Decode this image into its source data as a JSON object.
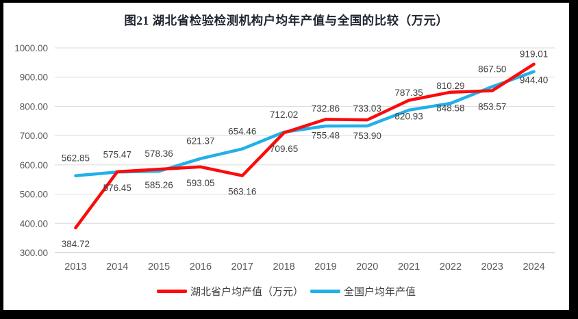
{
  "chart_data": {
    "type": "line",
    "title": "图21 湖北省检验检测机构户均年产值与全国的比较（万元）",
    "categories": [
      "2013",
      "2014",
      "2015",
      "2016",
      "2017",
      "2018",
      "2019",
      "2020",
      "2021",
      "2022",
      "2023",
      "2024"
    ],
    "series": [
      {
        "name": "湖北省户均产值（万元）",
        "color": "#fb0b0b",
        "label_position": "below",
        "values": [
          384.72,
          576.45,
          585.26,
          593.05,
          563.16,
          709.65,
          755.48,
          753.9,
          820.93,
          848.58,
          853.57,
          944.4
        ]
      },
      {
        "name": "全国户均年产值",
        "color": "#22b0e8",
        "label_position": "above",
        "values": [
          562.85,
          575.47,
          578.36,
          621.37,
          654.46,
          712.02,
          732.86,
          733.03,
          787.35,
          810.29,
          867.5,
          919.01
        ]
      }
    ],
    "ylim": [
      300,
      1000
    ],
    "ytick_step": 100,
    "ytick_decimals": 2,
    "grid": true,
    "legend_position": "bottom",
    "axis_text_color": "#595959",
    "label_text_color": "#404040",
    "gridline_color": "#d9d9d9",
    "axisline_color": "#bfbfbf"
  }
}
